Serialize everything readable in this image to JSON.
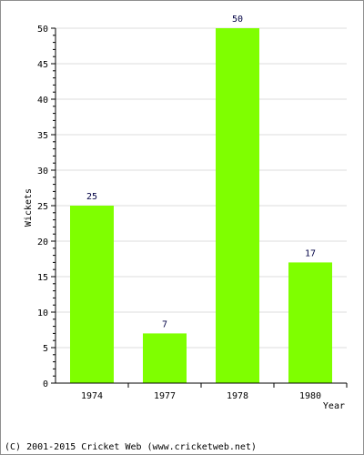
{
  "chart_data": {
    "type": "bar",
    "categories": [
      "1974",
      "1977",
      "1978",
      "1980"
    ],
    "values": [
      25,
      7,
      50,
      17
    ],
    "data_labels": [
      "25",
      "7",
      "50",
      "17"
    ],
    "title": "",
    "xlabel": "Year",
    "ylabel": "Wickets",
    "ylim": [
      0,
      50
    ],
    "y_ticks": [
      "0",
      "5",
      "10",
      "15",
      "20",
      "25",
      "30",
      "35",
      "40",
      "45",
      "50"
    ],
    "grid": true,
    "legend": "none",
    "colors": {
      "bar": "#7fff00",
      "axis": "#000000",
      "grid": "#dddddd",
      "data_label": "#000044",
      "frame": "#8f8f8f"
    }
  },
  "footer": {
    "copyright": "(C) 2001-2015 Cricket Web (www.cricketweb.net)"
  }
}
